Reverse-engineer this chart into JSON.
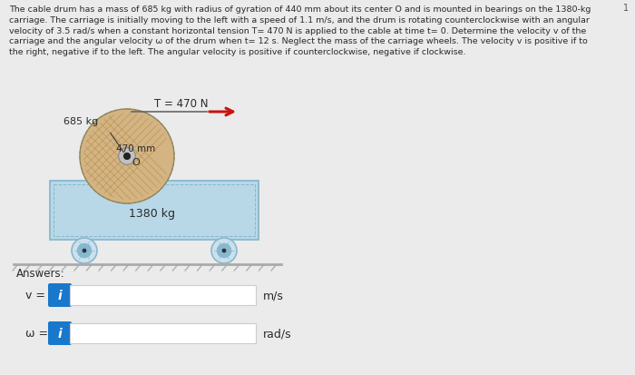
{
  "page_bg": "#ebebeb",
  "text_color": "#2a2a2a",
  "text_main": "The cable drum has a mass of 685 kg with radius of gyration of 440 mm about its center O and is mounted in bearings on the 1380-kg\ncarriage. The carriage is initially moving to the left with a speed of 1.1 m/s, and the drum is rotating counterclockwise with an angular\nvelocity of 3.5 rad/s when a constant horizontal tension T= 470 N is applied to the cable at time t= 0. Determine the velocity v of the\ncarriage and the angular velocity ω of the drum when t= 12 s. Neglect the mass of the carriage wheels. The velocity v is positive if to\nthe right, negative if to the left. The angular velocity is positive if counterclockwise, negative if clockwise.",
  "tension_label": "T = 470 N",
  "drum_mass": "685 kg",
  "radius_label": "470 mm",
  "carriage_mass": "1380 kg",
  "center_label": "O",
  "answers_label": "Answers:",
  "v_label": "v =",
  "omega_label": "ω =",
  "v_unit": "m/s",
  "omega_unit": "rad/s",
  "page_num": "1",
  "drum_fill": "#d4b483",
  "drum_edge": "#a08858",
  "drum_hatch_color": "#b89555",
  "carriage_fill": "#b8d8e8",
  "carriage_edge": "#88b8cc",
  "wheel_outer_fill": "#cce0ee",
  "wheel_inner_fill": "#88b8d0",
  "ground_color": "#aaaaaa",
  "arrow_color": "#cc1111",
  "cable_color": "#666666",
  "btn_color": "#1878cc",
  "input_border": "#cccccc",
  "input_fill": "#ffffff"
}
